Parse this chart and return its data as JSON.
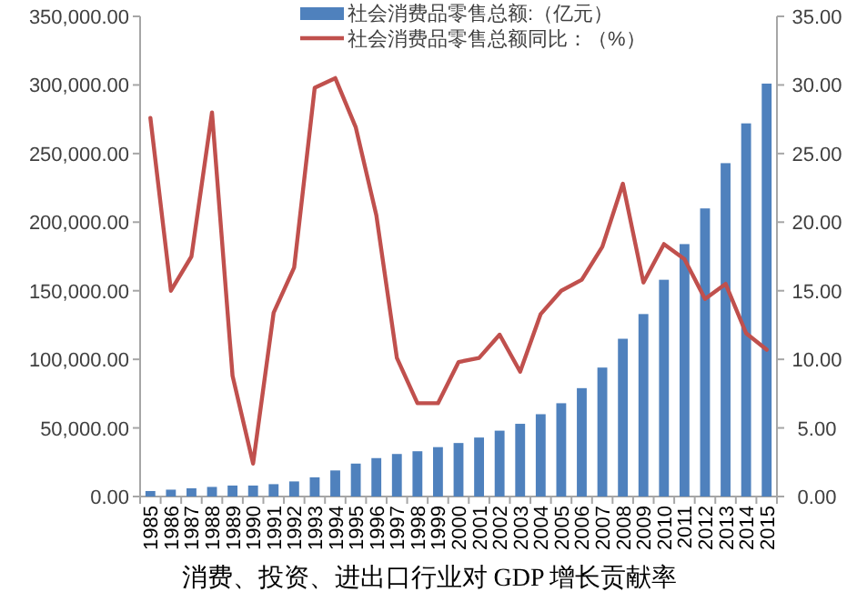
{
  "chart_data": {
    "type": "bar",
    "title": "消费、投资、进出口行业对 GDP 增长贡献率",
    "categories": [
      "1985",
      "1986",
      "1987",
      "1988",
      "1989",
      "1990",
      "1991",
      "1992",
      "1993",
      "1994",
      "1995",
      "1996",
      "1997",
      "1998",
      "1999",
      "2000",
      "2001",
      "2002",
      "2003",
      "2004",
      "2005",
      "2006",
      "2007",
      "2008",
      "2009",
      "2010",
      "2011",
      "2012",
      "2013",
      "2014",
      "2015"
    ],
    "series": [
      {
        "name": "社会消费品零售总额:（亿元）",
        "color": "#4f81bd",
        "values": [
          4000,
          5000,
          6000,
          7000,
          8000,
          8000,
          9000,
          11000,
          14000,
          19000,
          24000,
          28000,
          31000,
          33000,
          36000,
          39000,
          43000,
          48000,
          53000,
          60000,
          68000,
          79000,
          94000,
          115000,
          133000,
          158000,
          184000,
          210000,
          243000,
          272000,
          301000
        ]
      },
      {
        "name": "社会消费品零售总额同比：（%）",
        "type": "line",
        "axis": "y2",
        "color": "#c0504d",
        "values": [
          27.6,
          15.0,
          17.5,
          28.0,
          8.8,
          2.4,
          13.4,
          16.7,
          29.8,
          30.5,
          26.9,
          20.5,
          10.1,
          6.8,
          6.8,
          9.8,
          10.1,
          11.8,
          9.1,
          13.3,
          15.0,
          15.8,
          18.2,
          22.8,
          15.6,
          18.4,
          17.3,
          14.4,
          15.5,
          11.9,
          10.7
        ]
      }
    ],
    "ylim": [
      0,
      350000
    ],
    "yticks": [
      {
        "value": 0,
        "label": "0.00"
      },
      {
        "value": 50000,
        "label": "50,000.00"
      },
      {
        "value": 100000,
        "label": "100,000.00"
      },
      {
        "value": 150000,
        "label": "150,000.00"
      },
      {
        "value": 200000,
        "label": "200,000.00"
      },
      {
        "value": 250000,
        "label": "250,000.00"
      },
      {
        "value": 300000,
        "label": "300,000.00"
      },
      {
        "value": 350000,
        "label": "350,000.00"
      }
    ],
    "y2lim": [
      0,
      35
    ],
    "y2ticks": [
      {
        "value": 0,
        "label": "0.00"
      },
      {
        "value": 5,
        "label": "5.00"
      },
      {
        "value": 10,
        "label": "10.00"
      },
      {
        "value": 15,
        "label": "15.00"
      },
      {
        "value": 20,
        "label": "20.00"
      },
      {
        "value": 25,
        "label": "25.00"
      },
      {
        "value": 30,
        "label": "30.00"
      },
      {
        "value": 35,
        "label": "35.00"
      }
    ],
    "legend": "top",
    "grid": false,
    "marker": "none",
    "line_style": "solid"
  }
}
